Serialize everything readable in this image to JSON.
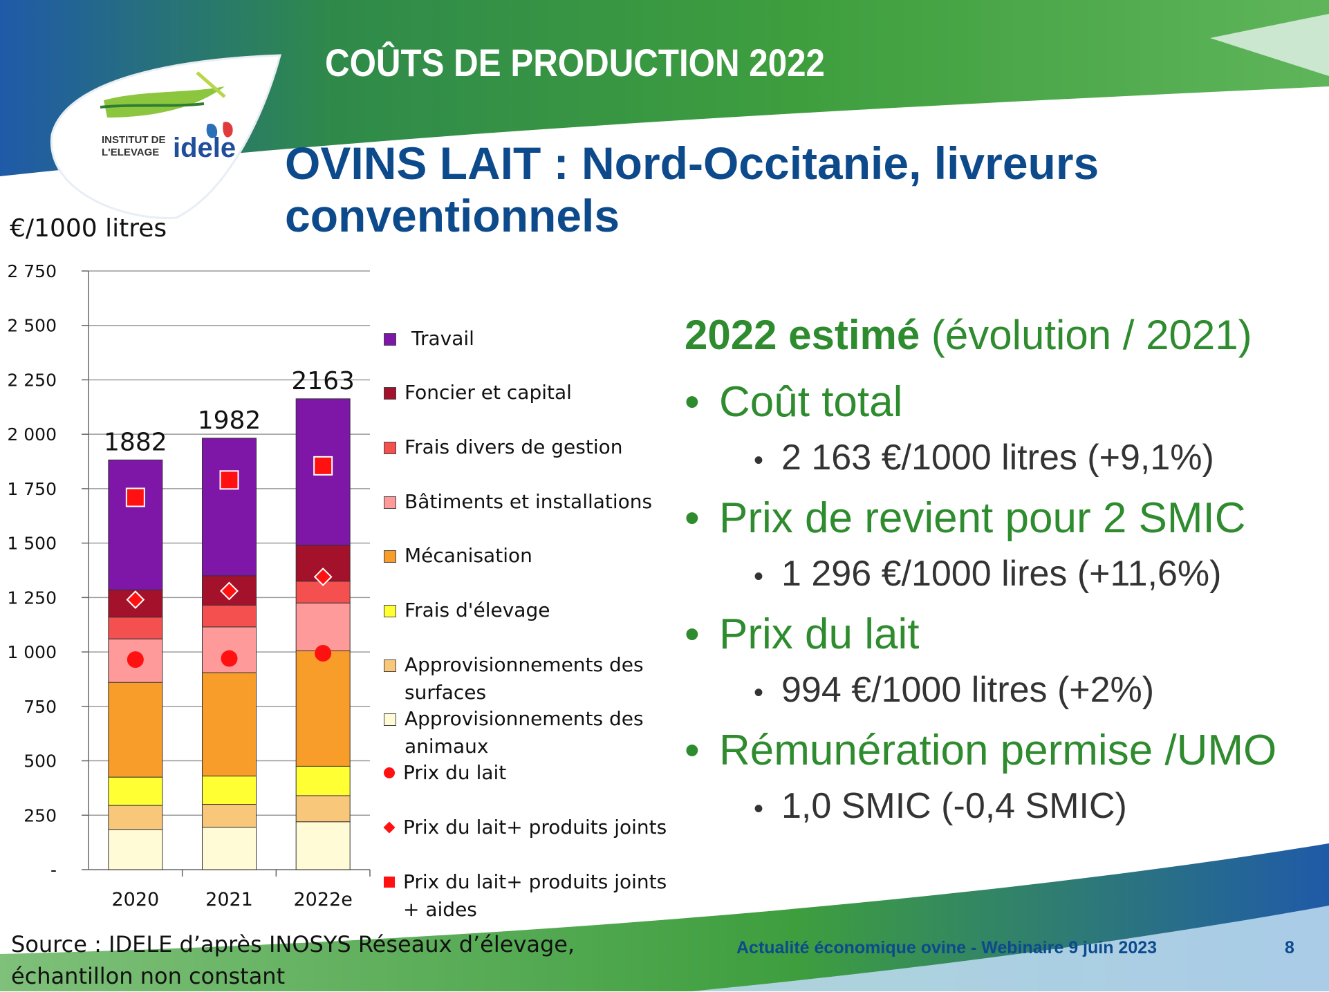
{
  "slide": {
    "title": "COÛTS DE PRODUCTION 2022",
    "heading": "OVINS LAIT : Nord-Occitanie, livreurs conventionnels",
    "logo_text_line1": "INSTITUT DE",
    "logo_text_line2": "L'ELEVAGE",
    "logo_brand": "idele",
    "source": "Source : IDELE d’après INOSYS Réseaux d’élevage, échantillon non  constant",
    "footer": "Actualité économique ovine - Webinaire 9 juin 2023",
    "page_number": "8"
  },
  "summary": {
    "title_bold": "2022 estimé",
    "title_rest": " (évolution / 2021)",
    "items": [
      {
        "label": "Coût total",
        "detail": "2 163 €/1000 litres (+9,1%)"
      },
      {
        "label": "Prix de revient pour 2 SMIC",
        "detail": "1 296 €/1000 lires (+11,6%)"
      },
      {
        "label": "Prix du lait",
        "detail": "994 €/1000 litres (+2%)"
      },
      {
        "label": "Rémunération permise /UMO",
        "detail": "1,0 SMIC (-0,4 SMIC)"
      }
    ]
  },
  "colors": {
    "title_bg_green": "#3a9a3a",
    "heading_blue": "#0d4a8c",
    "summary_green": "#2e8b2e"
  },
  "chart_data": {
    "type": "bar",
    "stacked": true,
    "unit_label": "€/1000 litres",
    "categories": [
      "2020",
      "2021",
      "2022e"
    ],
    "ylim": [
      0,
      2750
    ],
    "yticks": [
      0,
      250,
      500,
      750,
      1000,
      1250,
      1500,
      1750,
      2000,
      2250,
      2500,
      2750
    ],
    "ytick_labels": [
      "-",
      "250",
      "500",
      "750",
      "1 000",
      "1 250",
      "1 500",
      "1 750",
      "2 000",
      "2 250",
      "2 500",
      "2 750"
    ],
    "grid": true,
    "legend_position": "right",
    "totals": [
      "1882",
      "1982",
      "2163"
    ],
    "series": [
      {
        "name": "Approvisionnements des animaux",
        "color": "#fffbd6",
        "values": [
          185,
          195,
          220
        ]
      },
      {
        "name": "Approvisionnements des surfaces",
        "color": "#f9c77a",
        "values": [
          110,
          105,
          120
        ]
      },
      {
        "name": "Frais d'élevage",
        "color": "#ffff33",
        "values": [
          130,
          130,
          135
        ]
      },
      {
        "name": "Mécanisation",
        "color": "#f89c2a",
        "values": [
          435,
          475,
          530
        ]
      },
      {
        "name": "Bâtiments et installations",
        "color": "#ff9a9a",
        "values": [
          200,
          210,
          220
        ]
      },
      {
        "name": "Frais divers de gestion",
        "color": "#f55050",
        "values": [
          100,
          100,
          100
        ]
      },
      {
        "name": "Foncier et capital",
        "color": "#a3112a",
        "values": [
          125,
          135,
          165
        ]
      },
      {
        "name": "Travail",
        "color": "#7e16a8",
        "values": [
          597,
          632,
          673
        ]
      }
    ],
    "markers": [
      {
        "name": "Prix du lait",
        "shape": "circle",
        "color": "#ff1111",
        "values": [
          965,
          970,
          994
        ]
      },
      {
        "name": "Prix du lait+ produits joints",
        "shape": "diamond",
        "color": "#ff1111",
        "values": [
          1240,
          1280,
          1345
        ]
      },
      {
        "name": "Prix du lait+ produits joints + aides",
        "shape": "square",
        "color": "#ff1111",
        "values": [
          1710,
          1790,
          1855
        ]
      }
    ]
  }
}
